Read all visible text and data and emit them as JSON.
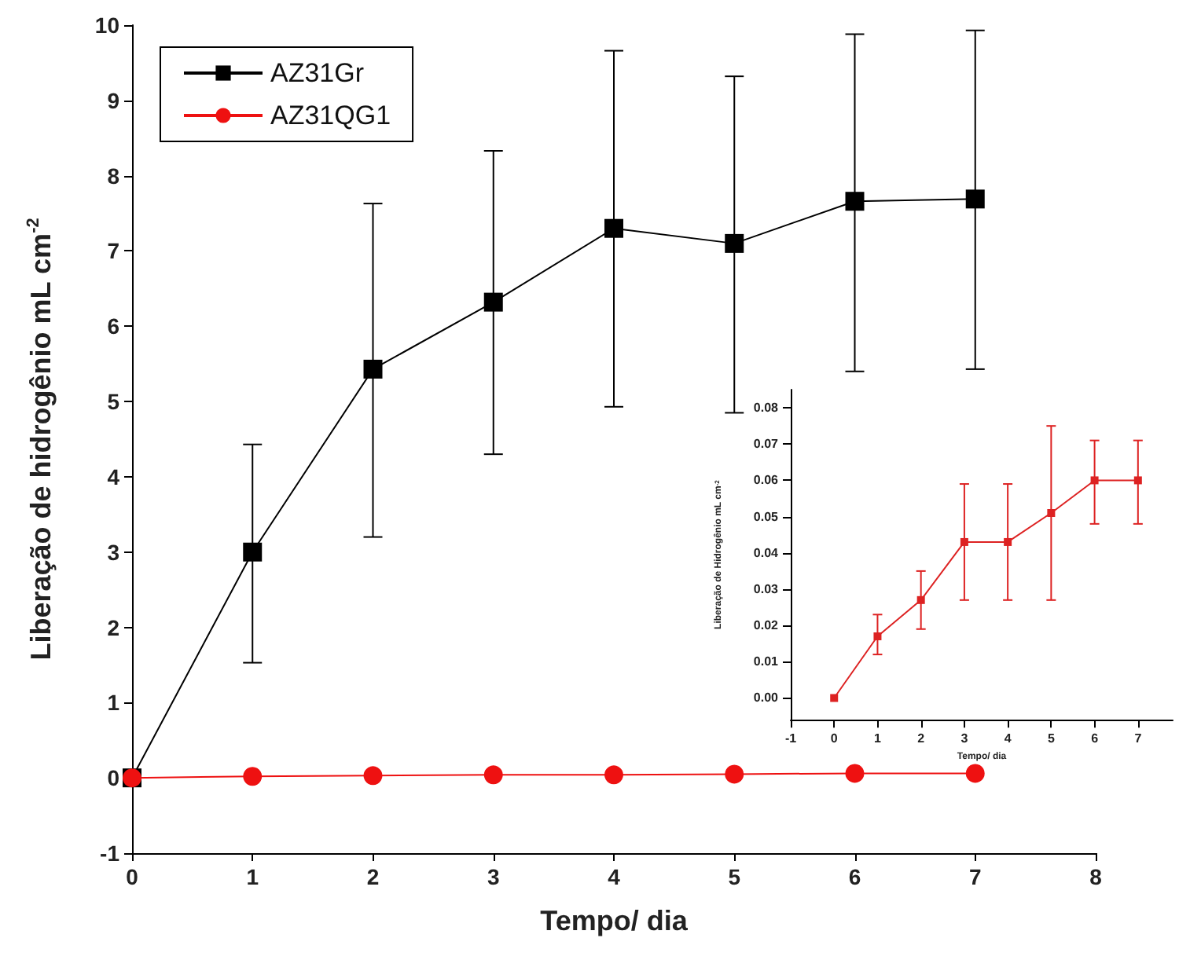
{
  "chart_data": [
    {
      "type": "line",
      "xlabel": "Tempo/ dia",
      "ylabel": "Liberação de hidrogênio mL cm$^{-2}$",
      "x": [
        0,
        1,
        2,
        3,
        4,
        5,
        6,
        7
      ],
      "series": [
        {
          "name": "AZ31Gr",
          "color": "#000000",
          "marker": "square",
          "values": [
            0,
            3.0,
            5.43,
            6.32,
            7.3,
            7.1,
            7.66,
            7.69
          ],
          "errors": [
            null,
            [
              1.53,
              4.43
            ],
            [
              3.2,
              7.63
            ],
            [
              4.3,
              8.33
            ],
            [
              4.93,
              9.66
            ],
            [
              4.85,
              9.32
            ],
            [
              5.4,
              9.88
            ],
            [
              5.43,
              9.93
            ]
          ]
        },
        {
          "name": "AZ31QG1",
          "color": "#ee1111",
          "marker": "circle",
          "values": [
            0,
            0.02,
            0.03,
            0.04,
            0.04,
            0.05,
            0.06,
            0.06
          ]
        }
      ],
      "xlim": [
        0,
        8
      ],
      "xticks": [
        0,
        1,
        2,
        3,
        4,
        5,
        6,
        7,
        8
      ],
      "ylim": [
        -1,
        10
      ],
      "yticks": [
        -1,
        0,
        1,
        2,
        3,
        4,
        5,
        6,
        7,
        8,
        9,
        10
      ],
      "legend": "top left",
      "grid": false,
      "line_style": "solid"
    },
    {
      "type": "line",
      "xlabel": "Tempo/ dia",
      "ylabel": "Liberação de Hidrogênio mL cm$^{-2}$",
      "x": [
        0,
        1,
        2,
        3,
        4,
        5,
        6,
        7
      ],
      "series": [
        {
          "color": "#dd2222",
          "marker": "square",
          "values": [
            0,
            0.017,
            0.027,
            0.043,
            0.043,
            0.051,
            0.06,
            0.06
          ],
          "errors": [
            null,
            [
              0.012,
              0.023
            ],
            [
              0.019,
              0.035
            ],
            [
              0.027,
              0.059
            ],
            [
              0.027,
              0.059
            ],
            [
              0.027,
              0.075
            ],
            [
              0.048,
              0.071
            ],
            [
              0.048,
              0.071
            ]
          ]
        }
      ],
      "xlim": [
        -1,
        7.8
      ],
      "xticks": [
        -1,
        0,
        1,
        2,
        3,
        4,
        5,
        6,
        7
      ],
      "ylim": [
        -0.006,
        0.085
      ],
      "yticks": [
        {
          "value": 0,
          "label": "0.00"
        },
        0.01,
        0.02,
        0.03,
        0.04,
        0.05,
        0.06,
        0.07,
        0.08
      ],
      "legend": false,
      "grid": false,
      "line_style": "solid"
    }
  ]
}
